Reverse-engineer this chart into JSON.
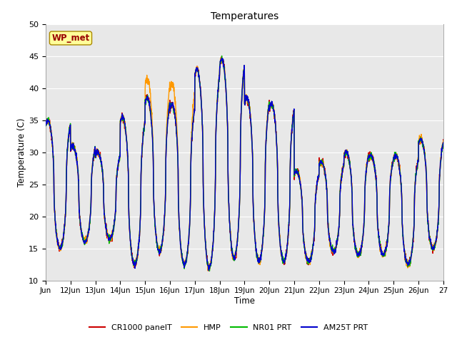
{
  "title": "Temperatures",
  "xlabel": "Time",
  "ylabel": "Temperature (C)",
  "ylim": [
    10,
    50
  ],
  "xlim": [
    0,
    16
  ],
  "background_color": "#e8e8e8",
  "wp_met_label": "WP_met",
  "wp_met_color": "#990000",
  "wp_met_bg": "#ffff99",
  "wp_met_border": "#aa8800",
  "xtick_labels": [
    "Jun",
    "12Jun",
    "13Jun",
    "14Jun",
    "15Jun",
    "16Jun",
    "17Jun",
    "18Jun",
    "19Jun",
    "20Jun",
    "21Jun",
    "22Jun",
    "23Jun",
    "24Jun",
    "25Jun",
    "26Jun",
    "27"
  ],
  "series_colors": [
    "#cc0000",
    "#ff9900",
    "#00bb00",
    "#0000cc"
  ],
  "series_labels": [
    "CR1000 panelT",
    "HMP",
    "NR01 PRT",
    "AM25T PRT"
  ],
  "ytick_values": [
    10,
    15,
    20,
    25,
    30,
    35,
    40,
    45,
    50
  ],
  "day_peaks": [
    35.0,
    31.0,
    30.0,
    35.5,
    38.5,
    37.5,
    43.0,
    44.5,
    38.5,
    37.5,
    27.0,
    28.5,
    30.0,
    29.5,
    29.5,
    32.0
  ],
  "day_mins": [
    15.0,
    16.0,
    16.5,
    12.5,
    14.5,
    12.5,
    12.0,
    13.5,
    13.0,
    13.0,
    13.0,
    14.5,
    14.0,
    14.0,
    12.5,
    15.0
  ]
}
